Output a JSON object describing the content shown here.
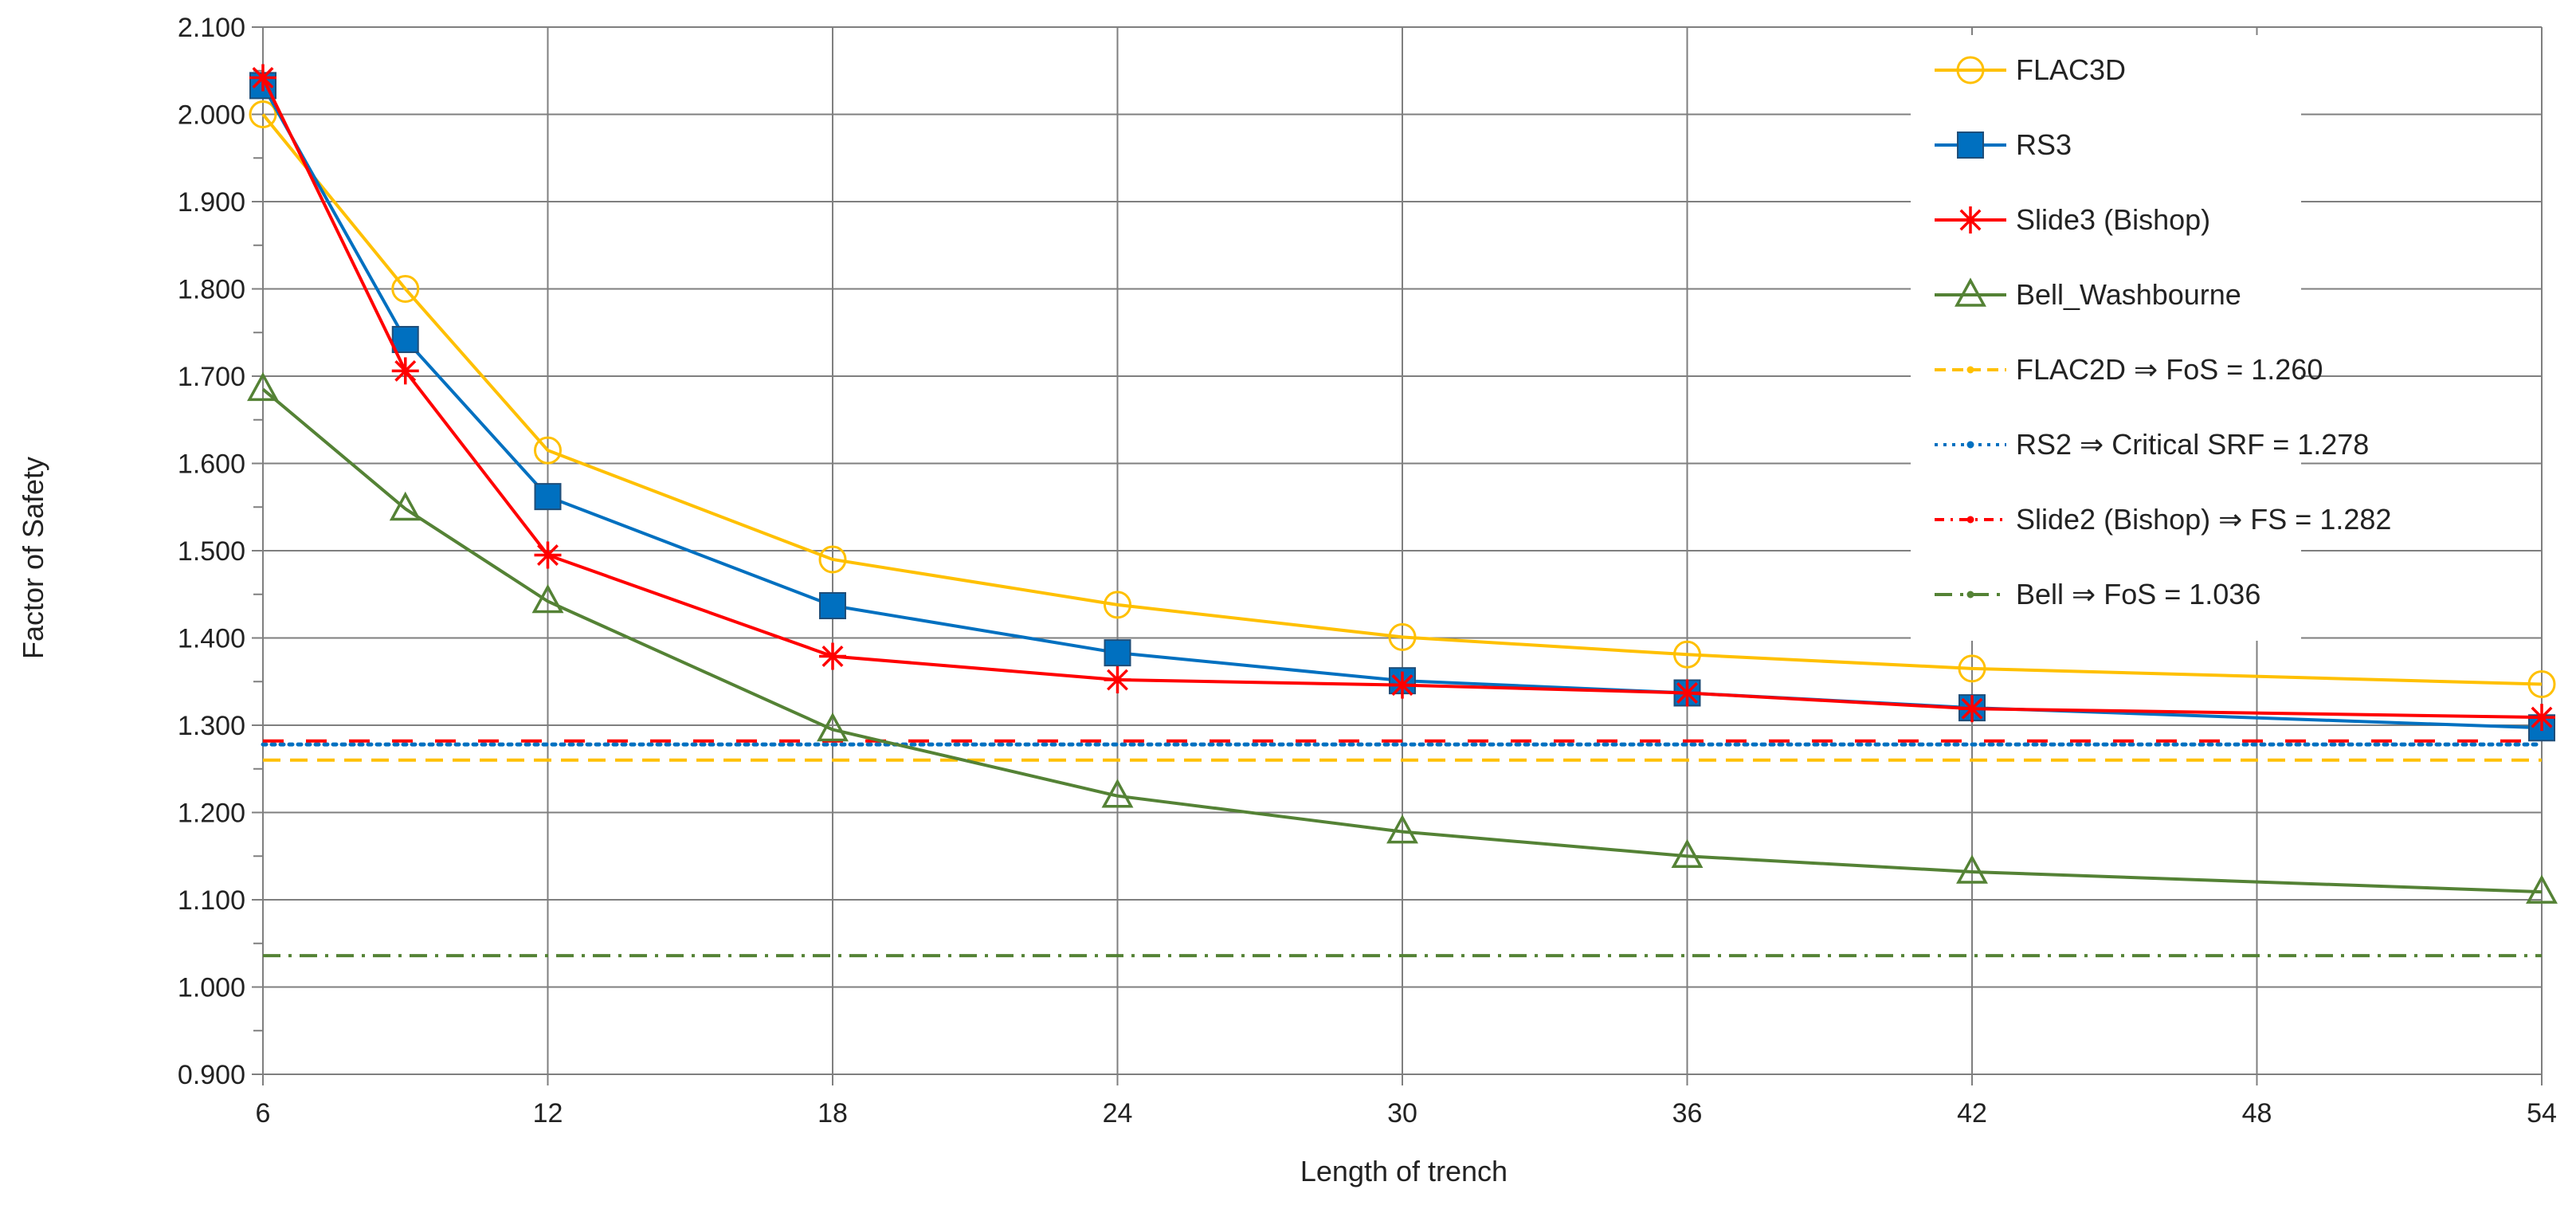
{
  "chart_data": {
    "type": "line",
    "title": "",
    "xlabel": "Length of trench",
    "ylabel": "Factor of Safety",
    "xlim": [
      6,
      54
    ],
    "ylim": [
      0.9,
      2.1
    ],
    "x_ticks": [
      6,
      12,
      18,
      24,
      30,
      36,
      42,
      48,
      54
    ],
    "y_ticks": [
      0.9,
      1.0,
      1.1,
      1.2,
      1.3,
      1.4,
      1.5,
      1.6,
      1.7,
      1.8,
      1.9,
      2.0,
      2.1
    ],
    "x_tick_labels": [
      "6",
      "12",
      "18",
      "24",
      "30",
      "36",
      "42",
      "48",
      "54"
    ],
    "y_tick_labels": [
      "0.900",
      "1.000",
      "1.100",
      "1.200",
      "1.300",
      "1.400",
      "1.500",
      "1.600",
      "1.700",
      "1.800",
      "1.900",
      "2.000",
      "2.100"
    ],
    "grid": true,
    "legend_position": "top-right",
    "series": [
      {
        "name": "FLAC3D",
        "color": "#FFC000",
        "marker": "circle",
        "line": "solid",
        "x": [
          6,
          9,
          12,
          18,
          24,
          30,
          36,
          42,
          54
        ],
        "y": [
          2.0,
          1.8,
          1.615,
          1.49,
          1.438,
          1.401,
          1.381,
          1.365,
          1.347
        ]
      },
      {
        "name": "RS3",
        "color": "#0070C0",
        "marker": "square",
        "line": "solid",
        "x": [
          6,
          9,
          12,
          18,
          24,
          30,
          36,
          42,
          54
        ],
        "y": [
          2.033,
          1.742,
          1.562,
          1.437,
          1.383,
          1.351,
          1.337,
          1.32,
          1.297
        ]
      },
      {
        "name": "Slide3 (Bishop)",
        "color": "#FF0000",
        "marker": "star",
        "line": "solid",
        "x": [
          6,
          9,
          12,
          18,
          24,
          30,
          36,
          42,
          54
        ],
        "y": [
          2.042,
          1.706,
          1.495,
          1.379,
          1.352,
          1.346,
          1.337,
          1.319,
          1.309
        ]
      },
      {
        "name": "Bell_Washbourne",
        "color": "#548235",
        "marker": "triangle",
        "line": "solid",
        "x": [
          6,
          9,
          12,
          18,
          24,
          30,
          36,
          42,
          54
        ],
        "y": [
          1.685,
          1.548,
          1.442,
          1.295,
          1.219,
          1.178,
          1.15,
          1.132,
          1.109
        ]
      },
      {
        "name": "FLAC2D   ⇒ FoS = 1.260",
        "color": "#FFC000",
        "marker": "dot",
        "line": "dashed",
        "x": [
          6,
          54
        ],
        "y": [
          1.26,
          1.26
        ]
      },
      {
        "name": "RS2   ⇒ Critical SRF = 1.278",
        "color": "#0070C0",
        "marker": "dot",
        "line": "dotted",
        "x": [
          6,
          54
        ],
        "y": [
          1.278,
          1.278
        ]
      },
      {
        "name": "Slide2 (Bishop)    ⇒ FS = 1.282",
        "color": "#FF0000",
        "marker": "dot",
        "line": "longdash",
        "x": [
          6,
          54
        ],
        "y": [
          1.282,
          1.282
        ]
      },
      {
        "name": "Bell    ⇒ FoS = 1.036",
        "color": "#548235",
        "marker": "dot",
        "line": "dashdot",
        "x": [
          6,
          54
        ],
        "y": [
          1.036,
          1.036
        ]
      }
    ]
  }
}
